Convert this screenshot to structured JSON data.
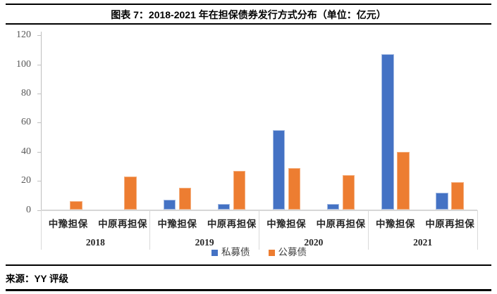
{
  "header": {
    "title": "图表 7：2018-2021 年在担保债券发行方式分布（单位：亿元）"
  },
  "source": {
    "label": "来源：YY 评级"
  },
  "chart_data": {
    "type": "bar",
    "title": "图表 7：2018-2021 年在担保债券发行方式分布（单位：亿元）",
    "unit": "亿元",
    "ylim": [
      0,
      120
    ],
    "yticks": [
      0,
      20,
      40,
      60,
      80,
      100,
      120
    ],
    "grid": false,
    "legend_position": "bottom",
    "years": [
      "2018",
      "2019",
      "2020",
      "2021"
    ],
    "subcategories": [
      "中豫担保",
      "中原再担保"
    ],
    "categories": [
      "中豫担保",
      "中原再担保",
      "中豫担保",
      "中原再担保",
      "中豫担保",
      "中原再担保",
      "中豫担保",
      "中原再担保"
    ],
    "series": [
      {
        "name": "私募债",
        "color": "#4472C4",
        "edge_color": "#A4BBE3",
        "values": [
          0,
          0,
          7,
          4,
          55,
          4,
          107,
          12
        ]
      },
      {
        "name": "公募债",
        "color": "#ED7D31",
        "edge_color": "#F4AE7D",
        "values": [
          6,
          23,
          15,
          27,
          29,
          24,
          40,
          19
        ]
      }
    ],
    "axis_colors": {
      "axis_line": "#BFBFBF",
      "x_axis_line": "#D6D6D6",
      "group_divider": "#D9D9D9",
      "tick_label": "#595959",
      "category_label": "#262626"
    }
  }
}
